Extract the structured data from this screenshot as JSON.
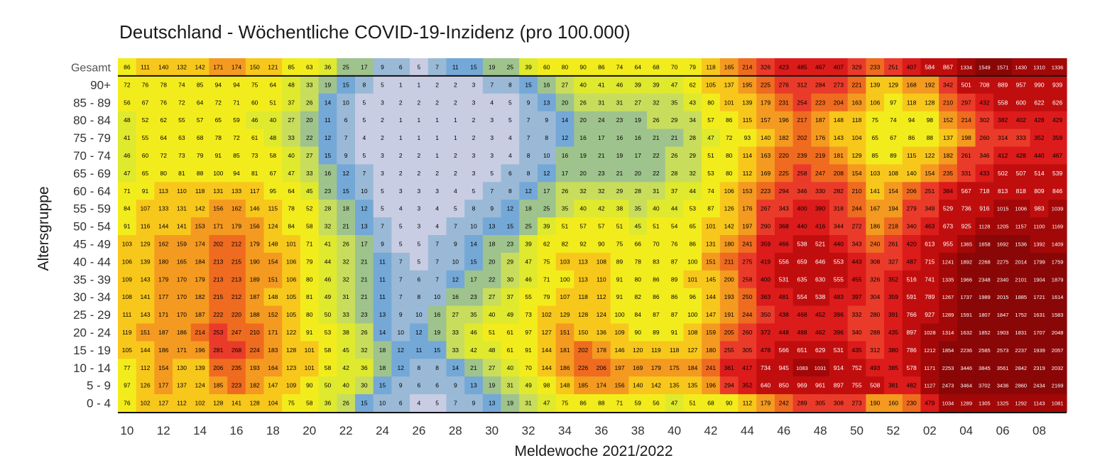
{
  "chart_data": {
    "type": "heatmap",
    "title": "Deutschland - Wöchentliche COVID-19-Inzidenz (pro 100.000)",
    "xlabel": "Meldewoche 2021/2022",
    "ylabel": "Altersgruppe",
    "x_ticks": [
      "10",
      "12",
      "14",
      "16",
      "18",
      "20",
      "22",
      "24",
      "26",
      "28",
      "30",
      "32",
      "34",
      "36",
      "38",
      "40",
      "42",
      "44",
      "46",
      "48",
      "50",
      "52",
      "02",
      "04",
      "06",
      "08"
    ],
    "row_labels": [
      "Gesamt",
      "90+",
      "85 - 89",
      "80 - 84",
      "75 - 79",
      "70 - 74",
      "65 - 69",
      "60 - 64",
      "55 - 59",
      "50 - 54",
      "45 - 49",
      "40 - 44",
      "35 - 39",
      "30 - 34",
      "25 - 29",
      "20 - 24",
      "15 - 19",
      "10 - 14",
      "5 - 9",
      "0 - 4"
    ],
    "values": [
      [
        86,
        111,
        140,
        132,
        142,
        171,
        174,
        150,
        121,
        85,
        63,
        36,
        25,
        17,
        9,
        6,
        5,
        7,
        11,
        15,
        19,
        25,
        39,
        60,
        80,
        90,
        86,
        74,
        64,
        68,
        70,
        79,
        118,
        165,
        214,
        326,
        423,
        485,
        467,
        407,
        329,
        233,
        251,
        407,
        584,
        867,
        1334,
        1549,
        1571,
        1430,
        1310,
        1336
      ],
      [
        72,
        76,
        78,
        74,
        85,
        94,
        94,
        75,
        64,
        48,
        33,
        19,
        15,
        8,
        5,
        1,
        1,
        2,
        2,
        3,
        7,
        8,
        15,
        16,
        27,
        40,
        41,
        46,
        39,
        39,
        47,
        62,
        105,
        137,
        195,
        225,
        276,
        312,
        284,
        273,
        221,
        139,
        129,
        168,
        192,
        342,
        501,
        708,
        889,
        957,
        990,
        939
      ],
      [
        56,
        67,
        76,
        72,
        64,
        72,
        71,
        60,
        51,
        37,
        26,
        14,
        10,
        5,
        3,
        2,
        2,
        2,
        2,
        3,
        4,
        5,
        9,
        13,
        20,
        26,
        31,
        31,
        27,
        32,
        35,
        43,
        80,
        101,
        139,
        179,
        231,
        254,
        223,
        204,
        163,
        106,
        97,
        118,
        128,
        210,
        297,
        432,
        558,
        600,
        622,
        626
      ],
      [
        48,
        52,
        62,
        55,
        57,
        65,
        59,
        46,
        40,
        27,
        20,
        11,
        6,
        5,
        2,
        1,
        1,
        1,
        1,
        2,
        3,
        5,
        7,
        9,
        14,
        20,
        24,
        23,
        19,
        26,
        29,
        34,
        57,
        86,
        115,
        157,
        196,
        217,
        187,
        148,
        118,
        75,
        74,
        94,
        98,
        152,
        214,
        302,
        382,
        402,
        428,
        429
      ],
      [
        41,
        55,
        64,
        63,
        68,
        78,
        72,
        61,
        48,
        33,
        22,
        12,
        7,
        4,
        2,
        1,
        1,
        1,
        1,
        2,
        3,
        4,
        7,
        8,
        12,
        16,
        17,
        16,
        16,
        21,
        21,
        28,
        47,
        72,
        93,
        140,
        182,
        202,
        176,
        143,
        104,
        65,
        67,
        86,
        88,
        137,
        198,
        260,
        314,
        333,
        352,
        359
      ],
      [
        46,
        60,
        72,
        73,
        79,
        91,
        85,
        73,
        58,
        40,
        27,
        15,
        9,
        5,
        3,
        2,
        2,
        1,
        2,
        3,
        3,
        4,
        8,
        10,
        16,
        19,
        21,
        19,
        17,
        22,
        26,
        29,
        51,
        80,
        114,
        163,
        220,
        239,
        219,
        181,
        129,
        85,
        89,
        115,
        122,
        182,
        261,
        346,
        412,
        428,
        440,
        467
      ],
      [
        47,
        65,
        80,
        81,
        88,
        100,
        94,
        81,
        67,
        47,
        33,
        16,
        12,
        7,
        3,
        2,
        2,
        2,
        2,
        3,
        5,
        6,
        8,
        12,
        17,
        20,
        23,
        21,
        20,
        22,
        28,
        32,
        53,
        80,
        112,
        169,
        225,
        258,
        247,
        208,
        154,
        103,
        108,
        140,
        154,
        235,
        331,
        433,
        502,
        507,
        514,
        539
      ],
      [
        71,
        91,
        113,
        110,
        118,
        131,
        133,
        117,
        95,
        64,
        45,
        23,
        15,
        10,
        5,
        3,
        3,
        3,
        4,
        5,
        7,
        8,
        12,
        17,
        26,
        32,
        32,
        29,
        28,
        31,
        37,
        44,
        74,
        106,
        153,
        223,
        294,
        346,
        330,
        282,
        210,
        141,
        154,
        206,
        251,
        384,
        567,
        718,
        813,
        818,
        809,
        846
      ],
      [
        84,
        107,
        133,
        131,
        142,
        156,
        162,
        146,
        115,
        78,
        52,
        28,
        18,
        12,
        5,
        4,
        3,
        4,
        5,
        8,
        9,
        12,
        18,
        25,
        35,
        40,
        42,
        38,
        35,
        40,
        44,
        53,
        87,
        126,
        176,
        267,
        343,
        400,
        380,
        318,
        244,
        167,
        194,
        279,
        349,
        529,
        736,
        916,
        1015,
        1006,
        983,
        1039
      ],
      [
        91,
        116,
        144,
        141,
        153,
        171,
        179,
        156,
        124,
        84,
        58,
        32,
        21,
        13,
        7,
        5,
        3,
        4,
        7,
        10,
        13,
        15,
        25,
        39,
        51,
        57,
        57,
        51,
        45,
        51,
        54,
        65,
        101,
        142,
        197,
        290,
        368,
        440,
        416,
        344,
        272,
        186,
        218,
        340,
        463,
        673,
        925,
        1128,
        1205,
        1157,
        1100,
        1169
      ],
      [
        103,
        129,
        162,
        159,
        174,
        202,
        212,
        179,
        148,
        101,
        71,
        41,
        26,
        17,
        9,
        5,
        5,
        7,
        9,
        14,
        18,
        23,
        39,
        62,
        82,
        92,
        90,
        75,
        66,
        70,
        76,
        86,
        131,
        180,
        241,
        359,
        466,
        538,
        521,
        440,
        343,
        240,
        261,
        420,
        613,
        955,
        1365,
        1658,
        1692,
        1536,
        1392,
        1409
      ],
      [
        106,
        139,
        180,
        165,
        184,
        213,
        215,
        190,
        154,
        106,
        79,
        44,
        32,
        21,
        11,
        7,
        5,
        7,
        10,
        15,
        20,
        29,
        47,
        75,
        103,
        113,
        108,
        89,
        78,
        83,
        87,
        100,
        151,
        211,
        275,
        419,
        556,
        659,
        646,
        553,
        443,
        308,
        327,
        487,
        715,
        1241,
        1892,
        2268,
        2275,
        2014,
        1799,
        1759
      ],
      [
        109,
        143,
        179,
        170,
        179,
        213,
        213,
        189,
        151,
        106,
        80,
        46,
        32,
        21,
        11,
        7,
        6,
        7,
        12,
        17,
        22,
        30,
        46,
        71,
        100,
        113,
        110,
        91,
        80,
        86,
        89,
        101,
        145,
        200,
        258,
        400,
        531,
        635,
        630,
        555,
        455,
        326,
        352,
        516,
        741,
        1335,
        1966,
        2348,
        2340,
        2101,
        1904,
        1879
      ],
      [
        108,
        141,
        177,
        170,
        182,
        215,
        212,
        187,
        148,
        105,
        81,
        49,
        31,
        21,
        11,
        7,
        8,
        10,
        16,
        23,
        27,
        37,
        55,
        79,
        107,
        118,
        112,
        91,
        82,
        86,
        86,
        96,
        144,
        193,
        250,
        363,
        481,
        554,
        538,
        483,
        397,
        304,
        359,
        591,
        789,
        1267,
        1737,
        1989,
        2015,
        1885,
        1721,
        1614
      ],
      [
        111,
        143,
        171,
        170,
        187,
        222,
        220,
        188,
        152,
        105,
        80,
        50,
        33,
        23,
        13,
        9,
        10,
        16,
        27,
        35,
        40,
        49,
        73,
        102,
        129,
        128,
        124,
        100,
        84,
        87,
        87,
        100,
        147,
        191,
        244,
        350,
        438,
        468,
        452,
        396,
        332,
        280,
        391,
        766,
        927,
        1289,
        1591,
        1807,
        1847,
        1752,
        1631,
        1583
      ],
      [
        119,
        151,
        187,
        186,
        214,
        253,
        247,
        210,
        171,
        122,
        91,
        53,
        38,
        26,
        14,
        10,
        12,
        19,
        33,
        46,
        51,
        61,
        97,
        127,
        151,
        150,
        136,
        109,
        90,
        89,
        91,
        108,
        159,
        205,
        260,
        372,
        448,
        488,
        462,
        396,
        340,
        288,
        435,
        897,
        1028,
        1314,
        1632,
        1852,
        1903,
        1831,
        1707,
        2048
      ],
      [
        105,
        144,
        186,
        171,
        196,
        281,
        268,
        224,
        183,
        128,
        101,
        58,
        45,
        32,
        18,
        12,
        11,
        15,
        33,
        42,
        48,
        61,
        91,
        144,
        181,
        202,
        178,
        146,
        120,
        119,
        118,
        127,
        180,
        255,
        305,
        478,
        566,
        651,
        629,
        531,
        435,
        312,
        380,
        786,
        1212,
        1854,
        2236,
        2585,
        2573,
        2237,
        1939,
        2057
      ],
      [
        77,
        112,
        154,
        130,
        139,
        206,
        235,
        193,
        164,
        123,
        101,
        58,
        42,
        36,
        18,
        12,
        8,
        8,
        14,
        21,
        27,
        40,
        70,
        144,
        186,
        226,
        206,
        197,
        169,
        179,
        175,
        184,
        241,
        361,
        417,
        734,
        945,
        1083,
        1031,
        914,
        752,
        493,
        385,
        578,
        1171,
        2253,
        3446,
        3845,
        3561,
        2842,
        2319,
        2032
      ],
      [
        97,
        126,
        177,
        137,
        124,
        185,
        223,
        182,
        147,
        109,
        90,
        50,
        40,
        30,
        15,
        9,
        6,
        6,
        9,
        13,
        19,
        31,
        49,
        98,
        148,
        185,
        174,
        156,
        140,
        142,
        135,
        135,
        196,
        294,
        352,
        640,
        850,
        969,
        961,
        897,
        755,
        508,
        381,
        482,
        1127,
        2473,
        3464,
        3702,
        3436,
        2860,
        2434,
        2169
      ],
      [
        76,
        102,
        127,
        112,
        102,
        128,
        141,
        128,
        104,
        75,
        58,
        36,
        26,
        15,
        10,
        6,
        4,
        5,
        7,
        9,
        13,
        19,
        31,
        47,
        75,
        86,
        88,
        71,
        59,
        56,
        47,
        51,
        68,
        90,
        112,
        179,
        242,
        289,
        305,
        308,
        273,
        190,
        160,
        230,
        479,
        1034,
        1289,
        1305,
        1325,
        1292,
        1143,
        1081
      ]
    ],
    "color_scale": [
      {
        "max": 5,
        "color": "#c8cde3"
      },
      {
        "max": 10,
        "color": "#9ab9d6"
      },
      {
        "max": 15,
        "color": "#74a8d7"
      },
      {
        "max": 25,
        "color": "#9fc38c"
      },
      {
        "max": 35,
        "color": "#c9dd5c"
      },
      {
        "max": 50,
        "color": "#dfe92e"
      },
      {
        "max": 100,
        "color": "#f3ec1c"
      },
      {
        "max": 150,
        "color": "#f8c71c"
      },
      {
        "max": 200,
        "color": "#f49a20"
      },
      {
        "max": 250,
        "color": "#ef6b20"
      },
      {
        "max": 350,
        "color": "#ea3b2a"
      },
      {
        "max": 500,
        "color": "#dc1b1b"
      },
      {
        "max": 1000,
        "color": "#c00e0e"
      },
      {
        "max": 1500,
        "color": "#a30808"
      },
      {
        "max": 1000000000.0,
        "color": "#8a0707"
      }
    ]
  }
}
